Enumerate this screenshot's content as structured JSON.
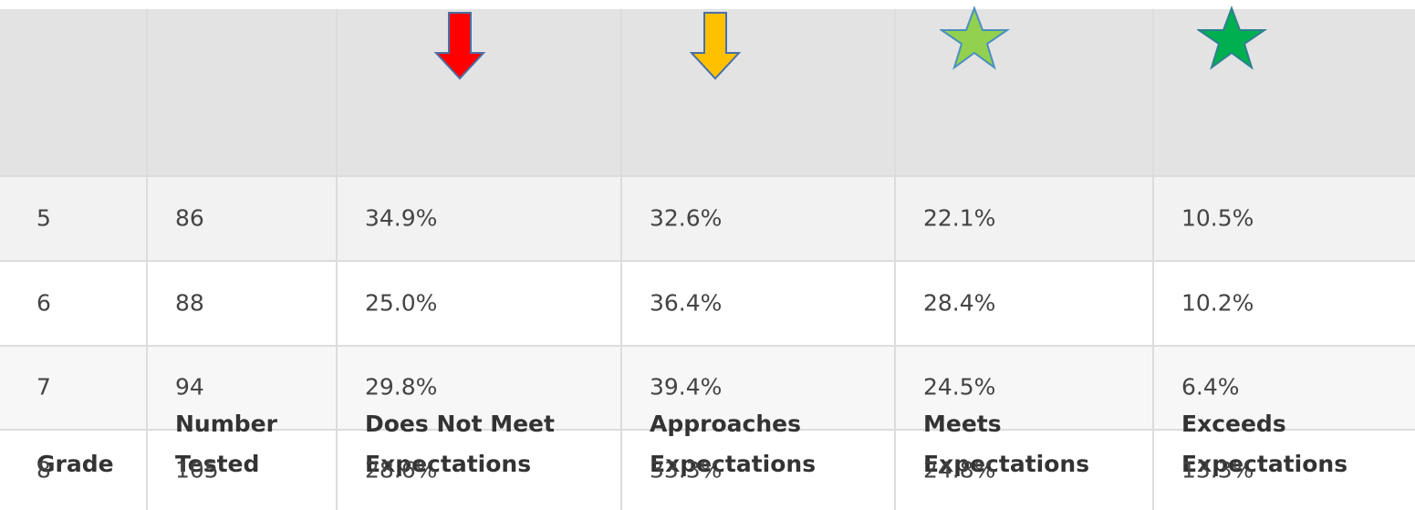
{
  "table": {
    "header": [
      "Grade",
      "Number Tested",
      "Does Not Meet Expectations",
      "Approaches Expectations",
      "Meets Expectations",
      "Exceeds Expectations"
    ],
    "rows": [
      [
        "5",
        "86",
        "34.9%",
        "32.6%",
        "22.1%",
        "10.5%"
      ],
      [
        "6",
        "88",
        "25.0%",
        "36.4%",
        "28.4%",
        "10.2%"
      ],
      [
        "7",
        "94",
        "29.8%",
        "39.4%",
        "24.5%",
        "6.4%"
      ],
      [
        "8",
        "105",
        "28.6%",
        "33.3%",
        "24.8%",
        "13.3%"
      ]
    ]
  }
}
